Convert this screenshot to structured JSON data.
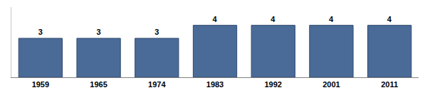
{
  "chart_data": {
    "type": "bar",
    "categories": [
      "1959",
      "1965",
      "1974",
      "1983",
      "1992",
      "2001",
      "2011"
    ],
    "values": [
      3,
      3,
      3,
      4,
      4,
      4,
      4
    ],
    "color": "#4a6b97",
    "ylim": [
      0,
      5.4
    ],
    "grid": false,
    "data_labels": true,
    "tick_labels": "x"
  }
}
